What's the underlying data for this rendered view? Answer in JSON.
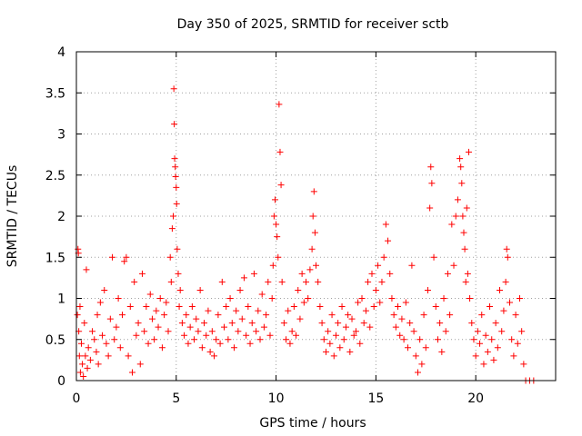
{
  "chart_data": {
    "type": "scatter",
    "title": "Day 350 of 2025, SRMTID for receiver sctb",
    "xlabel": "GPS time / hours",
    "ylabel": "SRMTID / TECUs",
    "xlim": [
      0,
      24
    ],
    "ylim": [
      0,
      4
    ],
    "xticks": [
      0,
      5,
      10,
      15,
      20
    ],
    "yticks": [
      0,
      0.5,
      1,
      1.5,
      2,
      2.5,
      3,
      3.5,
      4
    ],
    "xtick_labels": [
      "0",
      "5",
      "10",
      "15",
      "20"
    ],
    "ytick_labels": [
      "0",
      "0.5",
      "1",
      "1.5",
      "2",
      "2.5",
      "3",
      "3.5",
      "4"
    ],
    "grid": true,
    "marker": "plus",
    "color": "#ff0000",
    "series": [
      {
        "name": "sctb",
        "points": [
          [
            0.05,
            0.8
          ],
          [
            0.08,
            1.6
          ],
          [
            0.1,
            1.55
          ],
          [
            0.12,
            0.6
          ],
          [
            0.15,
            0.3
          ],
          [
            0.18,
            0.9
          ],
          [
            0.2,
            0.1
          ],
          [
            0.25,
            0.45
          ],
          [
            0.3,
            0.2
          ],
          [
            0.35,
            0.05
          ],
          [
            0.4,
            0.7
          ],
          [
            0.45,
            0.3
          ],
          [
            0.5,
            1.35
          ],
          [
            0.55,
            0.15
          ],
          [
            0.6,
            0.4
          ],
          [
            0.7,
            0.25
          ],
          [
            0.8,
            0.6
          ],
          [
            0.9,
            0.5
          ],
          [
            1.0,
            0.35
          ],
          [
            1.05,
            0.8
          ],
          [
            1.1,
            0.2
          ],
          [
            1.2,
            0.95
          ],
          [
            1.3,
            0.55
          ],
          [
            1.4,
            1.1
          ],
          [
            1.5,
            0.45
          ],
          [
            1.6,
            0.3
          ],
          [
            1.7,
            0.75
          ],
          [
            1.8,
            1.5
          ],
          [
            1.9,
            0.5
          ],
          [
            2.0,
            0.65
          ],
          [
            2.1,
            1.0
          ],
          [
            2.2,
            0.4
          ],
          [
            2.3,
            0.8
          ],
          [
            2.4,
            1.45
          ],
          [
            2.5,
            1.5
          ],
          [
            2.6,
            0.3
          ],
          [
            2.7,
            0.9
          ],
          [
            2.8,
            0.1
          ],
          [
            2.9,
            1.2
          ],
          [
            3.0,
            0.55
          ],
          [
            3.1,
            0.7
          ],
          [
            3.2,
            0.2
          ],
          [
            3.3,
            1.3
          ],
          [
            3.4,
            0.6
          ],
          [
            3.5,
            0.9
          ],
          [
            3.6,
            0.45
          ],
          [
            3.7,
            1.05
          ],
          [
            3.8,
            0.75
          ],
          [
            3.9,
            0.5
          ],
          [
            4.0,
            0.85
          ],
          [
            4.1,
            0.65
          ],
          [
            4.2,
            1.0
          ],
          [
            4.3,
            0.4
          ],
          [
            4.4,
            0.8
          ],
          [
            4.5,
            0.95
          ],
          [
            4.6,
            0.6
          ],
          [
            4.7,
            1.5
          ],
          [
            4.75,
            1.2
          ],
          [
            4.8,
            1.85
          ],
          [
            4.85,
            2.0
          ],
          [
            4.88,
            3.55
          ],
          [
            4.9,
            3.12
          ],
          [
            4.92,
            2.7
          ],
          [
            4.95,
            2.6
          ],
          [
            4.97,
            2.48
          ],
          [
            5.0,
            2.35
          ],
          [
            5.02,
            2.15
          ],
          [
            5.05,
            1.6
          ],
          [
            5.1,
            1.3
          ],
          [
            5.15,
            0.9
          ],
          [
            5.2,
            1.1
          ],
          [
            5.3,
            0.7
          ],
          [
            5.4,
            0.55
          ],
          [
            5.5,
            0.8
          ],
          [
            5.6,
            0.45
          ],
          [
            5.7,
            0.65
          ],
          [
            5.8,
            0.9
          ],
          [
            5.9,
            0.5
          ],
          [
            6.0,
            0.75
          ],
          [
            6.1,
            0.6
          ],
          [
            6.2,
            1.1
          ],
          [
            6.3,
            0.4
          ],
          [
            6.4,
            0.7
          ],
          [
            6.5,
            0.55
          ],
          [
            6.6,
            0.85
          ],
          [
            6.7,
            0.35
          ],
          [
            6.8,
            0.6
          ],
          [
            6.9,
            0.3
          ],
          [
            7.0,
            0.5
          ],
          [
            7.1,
            0.8
          ],
          [
            7.2,
            0.45
          ],
          [
            7.3,
            1.2
          ],
          [
            7.4,
            0.65
          ],
          [
            7.5,
            0.9
          ],
          [
            7.6,
            0.5
          ],
          [
            7.7,
            1.0
          ],
          [
            7.8,
            0.7
          ],
          [
            7.9,
            0.4
          ],
          [
            8.0,
            0.85
          ],
          [
            8.1,
            0.6
          ],
          [
            8.2,
            1.1
          ],
          [
            8.3,
            0.75
          ],
          [
            8.4,
            1.25
          ],
          [
            8.5,
            0.55
          ],
          [
            8.6,
            0.9
          ],
          [
            8.7,
            0.45
          ],
          [
            8.8,
            0.7
          ],
          [
            8.9,
            1.3
          ],
          [
            9.0,
            0.6
          ],
          [
            9.1,
            0.85
          ],
          [
            9.2,
            0.5
          ],
          [
            9.3,
            1.05
          ],
          [
            9.4,
            0.65
          ],
          [
            9.5,
            0.8
          ],
          [
            9.6,
            1.2
          ],
          [
            9.7,
            0.55
          ],
          [
            9.8,
            1.0
          ],
          [
            9.85,
            1.4
          ],
          [
            9.9,
            2.0
          ],
          [
            9.95,
            2.2
          ],
          [
            10.0,
            1.9
          ],
          [
            10.05,
            1.75
          ],
          [
            10.1,
            1.5
          ],
          [
            10.15,
            3.36
          ],
          [
            10.2,
            2.78
          ],
          [
            10.25,
            2.38
          ],
          [
            10.3,
            1.2
          ],
          [
            10.4,
            0.7
          ],
          [
            10.5,
            0.5
          ],
          [
            10.6,
            0.85
          ],
          [
            10.7,
            0.45
          ],
          [
            10.8,
            0.6
          ],
          [
            10.9,
            0.9
          ],
          [
            11.0,
            0.55
          ],
          [
            11.1,
            1.1
          ],
          [
            11.2,
            0.75
          ],
          [
            11.3,
            1.3
          ],
          [
            11.4,
            0.95
          ],
          [
            11.5,
            1.2
          ],
          [
            11.6,
            1.0
          ],
          [
            11.7,
            1.35
          ],
          [
            11.8,
            1.6
          ],
          [
            11.85,
            2.0
          ],
          [
            11.9,
            2.3
          ],
          [
            11.95,
            1.8
          ],
          [
            12.0,
            1.4
          ],
          [
            12.1,
            1.2
          ],
          [
            12.2,
            0.9
          ],
          [
            12.3,
            0.7
          ],
          [
            12.4,
            0.5
          ],
          [
            12.5,
            0.35
          ],
          [
            12.6,
            0.6
          ],
          [
            12.7,
            0.45
          ],
          [
            12.8,
            0.8
          ],
          [
            12.9,
            0.3
          ],
          [
            13.0,
            0.55
          ],
          [
            13.1,
            0.7
          ],
          [
            13.2,
            0.4
          ],
          [
            13.3,
            0.9
          ],
          [
            13.4,
            0.5
          ],
          [
            13.5,
            0.65
          ],
          [
            13.6,
            0.8
          ],
          [
            13.7,
            0.35
          ],
          [
            13.8,
            0.75
          ],
          [
            13.9,
            0.55
          ],
          [
            14.0,
            0.6
          ],
          [
            14.1,
            0.95
          ],
          [
            14.2,
            0.45
          ],
          [
            14.3,
            1.0
          ],
          [
            14.4,
            0.7
          ],
          [
            14.5,
            0.85
          ],
          [
            14.6,
            1.2
          ],
          [
            14.7,
            0.65
          ],
          [
            14.8,
            1.3
          ],
          [
            14.9,
            0.9
          ],
          [
            15.0,
            1.1
          ],
          [
            15.1,
            1.4
          ],
          [
            15.2,
            0.95
          ],
          [
            15.3,
            1.2
          ],
          [
            15.4,
            1.5
          ],
          [
            15.5,
            1.9
          ],
          [
            15.6,
            1.7
          ],
          [
            15.7,
            1.3
          ],
          [
            15.8,
            1.0
          ],
          [
            15.9,
            0.8
          ],
          [
            16.0,
            0.65
          ],
          [
            16.1,
            0.9
          ],
          [
            16.2,
            0.55
          ],
          [
            16.3,
            0.75
          ],
          [
            16.4,
            0.5
          ],
          [
            16.5,
            0.95
          ],
          [
            16.6,
            0.4
          ],
          [
            16.7,
            0.7
          ],
          [
            16.8,
            1.4
          ],
          [
            16.9,
            0.6
          ],
          [
            17.0,
            0.3
          ],
          [
            17.1,
            0.1
          ],
          [
            17.2,
            0.5
          ],
          [
            17.3,
            0.2
          ],
          [
            17.4,
            0.8
          ],
          [
            17.5,
            0.4
          ],
          [
            17.6,
            1.1
          ],
          [
            17.7,
            2.1
          ],
          [
            17.75,
            2.6
          ],
          [
            17.8,
            2.4
          ],
          [
            17.9,
            1.5
          ],
          [
            18.0,
            0.9
          ],
          [
            18.1,
            0.5
          ],
          [
            18.2,
            0.7
          ],
          [
            18.3,
            0.35
          ],
          [
            18.4,
            1.0
          ],
          [
            18.5,
            0.6
          ],
          [
            18.6,
            1.3
          ],
          [
            18.7,
            0.8
          ],
          [
            18.8,
            1.9
          ],
          [
            18.9,
            1.4
          ],
          [
            19.0,
            2.0
          ],
          [
            19.1,
            2.2
          ],
          [
            19.2,
            2.7
          ],
          [
            19.25,
            2.6
          ],
          [
            19.3,
            2.4
          ],
          [
            19.35,
            2.0
          ],
          [
            19.4,
            1.8
          ],
          [
            19.45,
            1.6
          ],
          [
            19.5,
            1.2
          ],
          [
            19.55,
            2.1
          ],
          [
            19.6,
            1.3
          ],
          [
            19.65,
            2.78
          ],
          [
            19.7,
            1.0
          ],
          [
            19.8,
            0.7
          ],
          [
            19.9,
            0.5
          ],
          [
            20.0,
            0.3
          ],
          [
            20.1,
            0.6
          ],
          [
            20.2,
            0.45
          ],
          [
            20.3,
            0.8
          ],
          [
            20.4,
            0.2
          ],
          [
            20.5,
            0.55
          ],
          [
            20.6,
            0.35
          ],
          [
            20.7,
            0.9
          ],
          [
            20.8,
            0.5
          ],
          [
            20.9,
            0.25
          ],
          [
            21.0,
            0.7
          ],
          [
            21.1,
            0.4
          ],
          [
            21.2,
            1.1
          ],
          [
            21.3,
            0.6
          ],
          [
            21.4,
            0.85
          ],
          [
            21.5,
            1.2
          ],
          [
            21.55,
            1.6
          ],
          [
            21.6,
            1.5
          ],
          [
            21.7,
            0.95
          ],
          [
            21.8,
            0.5
          ],
          [
            21.9,
            0.3
          ],
          [
            22.0,
            0.8
          ],
          [
            22.1,
            0.45
          ],
          [
            22.2,
            1.0
          ],
          [
            22.3,
            0.6
          ],
          [
            22.4,
            0.2
          ],
          [
            22.5,
            0.0
          ],
          [
            22.7,
            0.0
          ],
          [
            22.9,
            0.0
          ]
        ]
      }
    ]
  }
}
